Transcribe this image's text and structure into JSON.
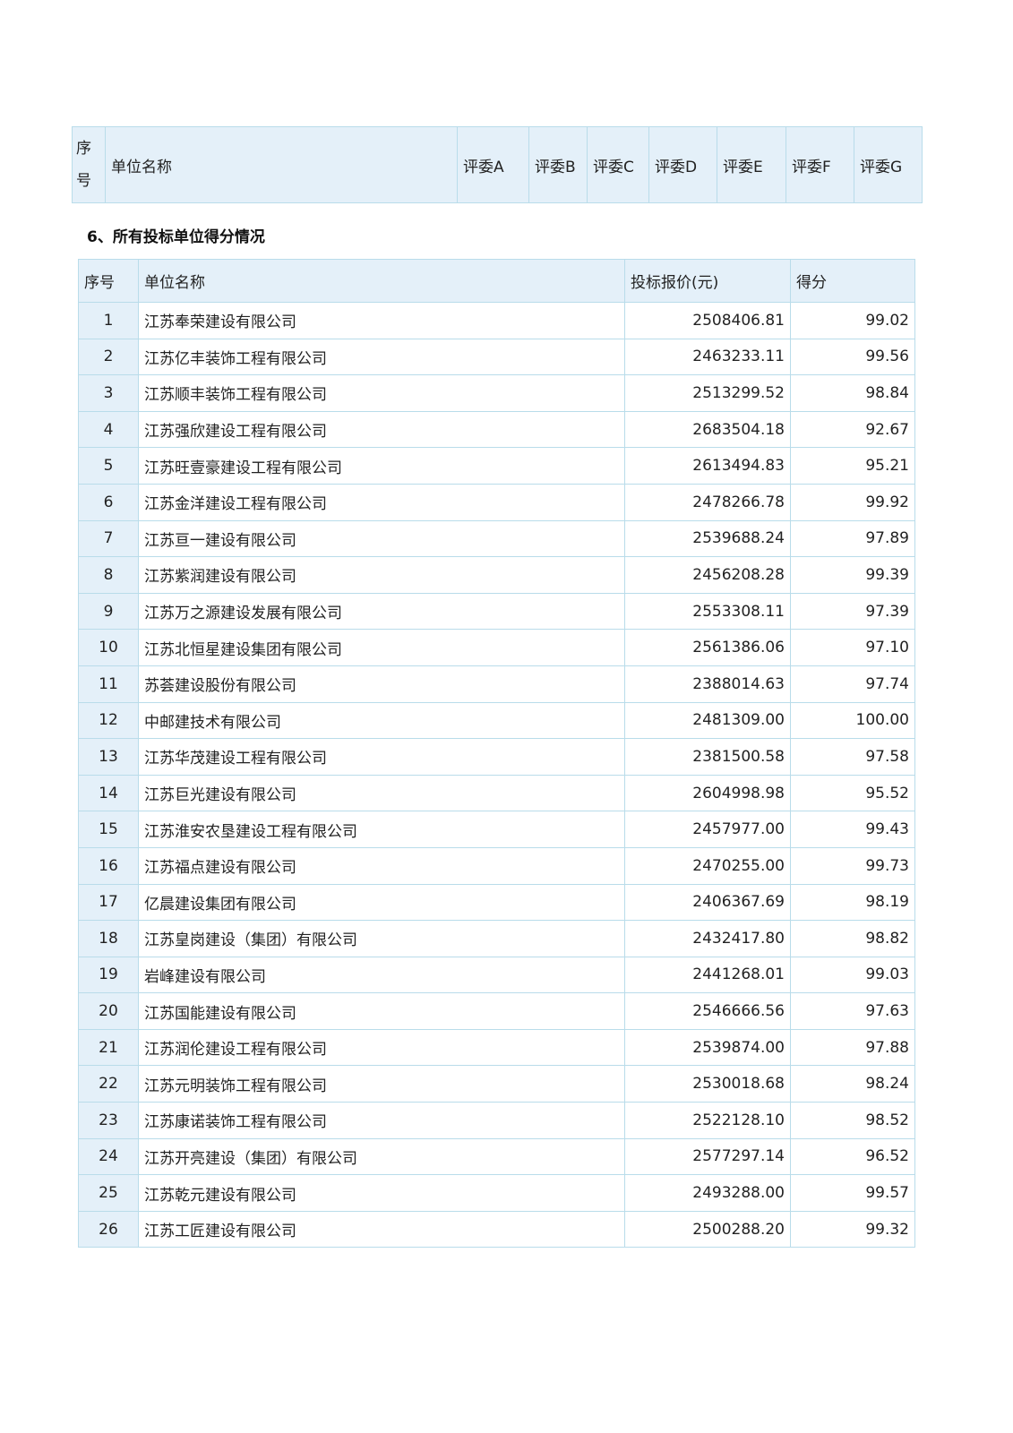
{
  "judges_table": {
    "headers": {
      "seq": "序号",
      "name": "单位名称",
      "judges": [
        "评委A",
        "评委B",
        "评委C",
        "评委D",
        "评委E",
        "评委F",
        "评委G"
      ]
    }
  },
  "section_title": "6、所有投标单位得分情况",
  "scores_table": {
    "headers": {
      "seq": "序号",
      "name": "单位名称",
      "price": "投标报价(元)",
      "score": "得分"
    },
    "rows": [
      {
        "seq": "1",
        "name": "江苏奉荣建设有限公司",
        "price": "2508406.81",
        "score": "99.02"
      },
      {
        "seq": "2",
        "name": "江苏亿丰装饰工程有限公司",
        "price": "2463233.11",
        "score": "99.56"
      },
      {
        "seq": "3",
        "name": "江苏顺丰装饰工程有限公司",
        "price": "2513299.52",
        "score": "98.84"
      },
      {
        "seq": "4",
        "name": "江苏强欣建设工程有限公司",
        "price": "2683504.18",
        "score": "92.67"
      },
      {
        "seq": "5",
        "name": "江苏旺壹豪建设工程有限公司",
        "price": "2613494.83",
        "score": "95.21"
      },
      {
        "seq": "6",
        "name": "江苏金洋建设工程有限公司",
        "price": "2478266.78",
        "score": "99.92"
      },
      {
        "seq": "7",
        "name": "江苏亘一建设有限公司",
        "price": "2539688.24",
        "score": "97.89"
      },
      {
        "seq": "8",
        "name": "江苏紫润建设有限公司",
        "price": "2456208.28",
        "score": "99.39"
      },
      {
        "seq": "9",
        "name": "江苏万之源建设发展有限公司",
        "price": "2553308.11",
        "score": "97.39"
      },
      {
        "seq": "10",
        "name": "江苏北恒星建设集团有限公司",
        "price": "2561386.06",
        "score": "97.10"
      },
      {
        "seq": "11",
        "name": "苏荟建设股份有限公司",
        "price": "2388014.63",
        "score": "97.74"
      },
      {
        "seq": "12",
        "name": "中邮建技术有限公司",
        "price": "2481309.00",
        "score": "100.00"
      },
      {
        "seq": "13",
        "name": "江苏华茂建设工程有限公司",
        "price": "2381500.58",
        "score": "97.58"
      },
      {
        "seq": "14",
        "name": "江苏巨光建设有限公司",
        "price": "2604998.98",
        "score": "95.52"
      },
      {
        "seq": "15",
        "name": "江苏淮安农垦建设工程有限公司",
        "price": "2457977.00",
        "score": "99.43"
      },
      {
        "seq": "16",
        "name": "江苏福点建设有限公司",
        "price": "2470255.00",
        "score": "99.73"
      },
      {
        "seq": "17",
        "name": "亿晨建设集团有限公司",
        "price": "2406367.69",
        "score": "98.19"
      },
      {
        "seq": "18",
        "name": "江苏皇岗建设（集团）有限公司",
        "price": "2432417.80",
        "score": "98.82"
      },
      {
        "seq": "19",
        "name": "岩峰建设有限公司",
        "price": "2441268.01",
        "score": "99.03"
      },
      {
        "seq": "20",
        "name": "江苏国能建设有限公司",
        "price": "2546666.56",
        "score": "97.63"
      },
      {
        "seq": "21",
        "name": "江苏润伦建设工程有限公司",
        "price": "2539874.00",
        "score": "97.88"
      },
      {
        "seq": "22",
        "name": "江苏元明装饰工程有限公司",
        "price": "2530018.68",
        "score": "98.24"
      },
      {
        "seq": "23",
        "name": "江苏康诺装饰工程有限公司",
        "price": "2522128.10",
        "score": "98.52"
      },
      {
        "seq": "24",
        "name": "江苏开亮建设（集团）有限公司",
        "price": "2577297.14",
        "score": "96.52"
      },
      {
        "seq": "25",
        "name": "江苏乾元建设有限公司",
        "price": "2493288.00",
        "score": "99.57"
      },
      {
        "seq": "26",
        "name": "江苏工匠建设有限公司",
        "price": "2500288.20",
        "score": "99.32"
      }
    ]
  }
}
